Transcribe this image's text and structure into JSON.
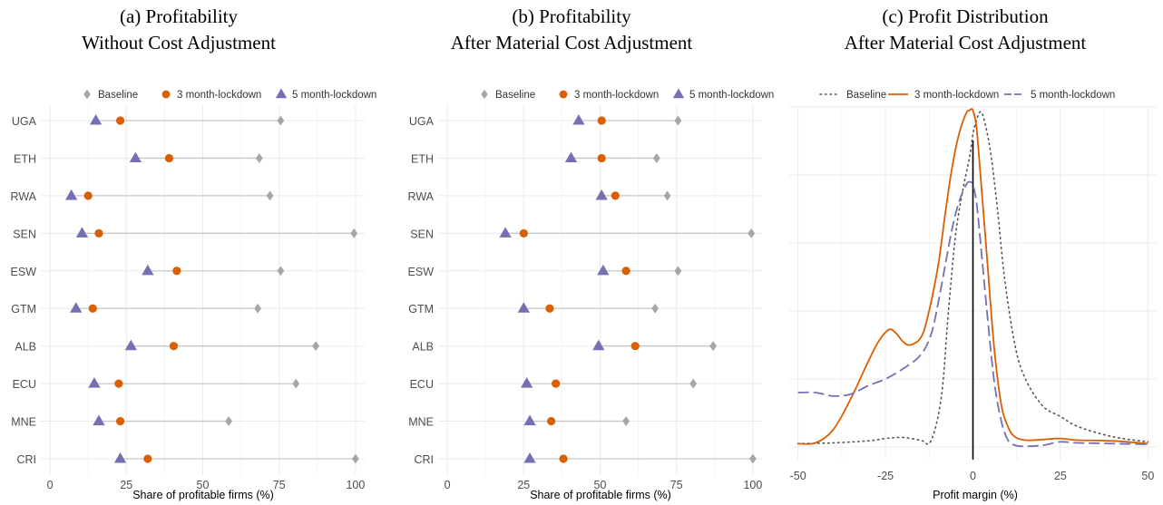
{
  "colors": {
    "baseline": "#a6a6a6",
    "lockdown3": "#d95f02",
    "lockdown5": "#7570b3",
    "baseline_line": "#555555",
    "zero_line": "#000000"
  },
  "chart_data": [
    {
      "type": "dumbbell",
      "title_line1": "(a) Profitability",
      "title_line2": "Without Cost Adjustment",
      "xlabel": "Share of profitable firms (%)",
      "xlim": [
        -3,
        103
      ],
      "xticks": [
        "0",
        "25",
        "50",
        "75",
        "100"
      ],
      "xtick_values": [
        0,
        25,
        50,
        75,
        100
      ],
      "legend": {
        "position": "top",
        "entries": [
          "Baseline",
          "3 month-lockdown",
          "5 month-lockdown"
        ]
      },
      "categories": [
        "UGA",
        "ETH",
        "RWA",
        "SEN",
        "ESW",
        "GTM",
        "ALB",
        "ECU",
        "MNE",
        "CRI"
      ],
      "series": [
        {
          "name": "Baseline",
          "marker": "diamond",
          "values": [
            75.5,
            68.5,
            72,
            99.5,
            75.5,
            68,
            87,
            80.5,
            58.5,
            100
          ]
        },
        {
          "name": "3 month-lockdown",
          "marker": "circle",
          "values": [
            23,
            39,
            12.5,
            16,
            41.5,
            14,
            40.5,
            22.5,
            23,
            32
          ]
        },
        {
          "name": "5 month-lockdown",
          "marker": "triangle",
          "values": [
            15,
            28,
            7,
            10.5,
            32,
            8.5,
            26.5,
            14.5,
            16,
            23
          ]
        }
      ]
    },
    {
      "type": "dumbbell",
      "title_line1": "(b) Profitability",
      "title_line2": "After Material Cost Adjustment",
      "xlabel": "Share of profitable firms (%)",
      "xlim": [
        -3,
        103
      ],
      "xticks": [
        "0",
        "25",
        "50",
        "75",
        "100"
      ],
      "xtick_values": [
        0,
        25,
        50,
        75,
        100
      ],
      "legend": {
        "position": "top",
        "entries": [
          "Baseline",
          "3 month-lockdown",
          "5 month-lockdown"
        ]
      },
      "categories": [
        "UGA",
        "ETH",
        "RWA",
        "SEN",
        "ESW",
        "GTM",
        "ALB",
        "ECU",
        "MNE",
        "CRI"
      ],
      "series": [
        {
          "name": "Baseline",
          "marker": "diamond",
          "values": [
            75.5,
            68.5,
            72,
            99.5,
            75.5,
            68,
            87,
            80.5,
            58.5,
            100
          ]
        },
        {
          "name": "3 month-lockdown",
          "marker": "circle",
          "values": [
            50.5,
            50.5,
            55,
            25,
            58.5,
            33.5,
            61.5,
            35.5,
            34,
            38
          ]
        },
        {
          "name": "5 month-lockdown",
          "marker": "triangle",
          "values": [
            43,
            40.5,
            50.5,
            19,
            51,
            25,
            49.5,
            26,
            27,
            27
          ]
        }
      ]
    },
    {
      "type": "line",
      "title_line1": "(c) Profit Distribution",
      "title_line2": "After Material Cost Adjustment",
      "xlabel": "Profit margin (%)",
      "xlim": [
        -52.5,
        52.5
      ],
      "ylim": [
        0,
        0.1
      ],
      "xticks": [
        "-50",
        "-25",
        "0",
        "25",
        "50"
      ],
      "xtick_values": [
        -50,
        -25,
        0,
        25,
        50
      ],
      "vline": 0,
      "legend": {
        "position": "top",
        "entries": [
          "Baseline",
          "3 month-lockdown",
          "5 month-lockdown"
        ]
      },
      "series": [
        {
          "name": "Baseline",
          "style": "dotted",
          "x": [
            -50,
            -40,
            -30,
            -25,
            -20,
            -15,
            -12,
            -9,
            -7,
            -5,
            -3,
            -1,
            0,
            1,
            2,
            3,
            5,
            7,
            9,
            12,
            15,
            20,
            25,
            30,
            40,
            50
          ],
          "y": [
            0.001,
            0.0012,
            0.0018,
            0.0025,
            0.0028,
            0.002,
            0.0018,
            0.015,
            0.04,
            0.062,
            0.075,
            0.085,
            0.092,
            0.096,
            0.0985,
            0.097,
            0.087,
            0.07,
            0.05,
            0.03,
            0.02,
            0.012,
            0.009,
            0.006,
            0.003,
            0.0015
          ]
        },
        {
          "name": "3 month-lockdown",
          "style": "solid",
          "x": [
            -50,
            -45,
            -40,
            -35,
            -30,
            -27,
            -24,
            -22,
            -20,
            -18,
            -15,
            -13,
            -10,
            -8,
            -6,
            -4,
            -2,
            -1,
            0,
            1,
            2,
            4,
            6,
            8,
            10,
            12,
            15,
            20,
            25,
            30,
            40,
            50
          ],
          "y": [
            0.001,
            0.0012,
            0.005,
            0.014,
            0.025,
            0.031,
            0.0345,
            0.0335,
            0.031,
            0.03,
            0.032,
            0.038,
            0.053,
            0.068,
            0.082,
            0.092,
            0.098,
            0.099,
            0.099,
            0.094,
            0.082,
            0.056,
            0.03,
            0.013,
            0.006,
            0.003,
            0.002,
            0.0022,
            0.0025,
            0.002,
            0.0018,
            0.001
          ]
        },
        {
          "name": "5 month-lockdown",
          "style": "dashed",
          "x": [
            -50,
            -45,
            -40,
            -35,
            -30,
            -25,
            -20,
            -15,
            -12,
            -10,
            -8,
            -6,
            -4,
            -2,
            -1,
            0,
            1,
            2,
            4,
            6,
            8,
            10,
            12,
            15,
            20,
            25,
            30,
            40,
            50
          ],
          "y": [
            0.016,
            0.016,
            0.015,
            0.0155,
            0.018,
            0.02,
            0.023,
            0.027,
            0.033,
            0.042,
            0.053,
            0.064,
            0.072,
            0.077,
            0.078,
            0.077,
            0.072,
            0.062,
            0.04,
            0.02,
            0.008,
            0.002,
            0.0005,
            0.0002,
            0.0005,
            0.0015,
            0.0012,
            0.001,
            0.0008
          ]
        }
      ]
    }
  ]
}
